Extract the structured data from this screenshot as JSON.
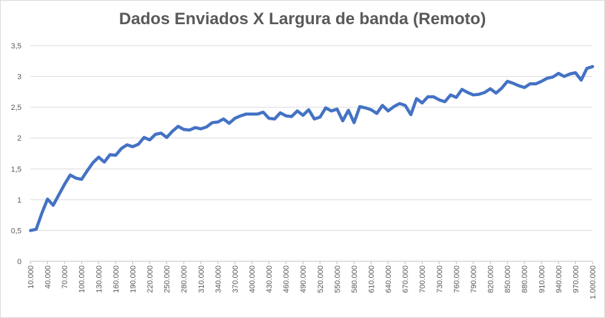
{
  "chart_data": {
    "type": "line",
    "title": "Dados Enviados X Largura de banda (Remoto)",
    "xlabel": "",
    "ylabel": "",
    "ylim": [
      0,
      3.5
    ],
    "y_ticks": [
      "0",
      "0,5",
      "1",
      "1,5",
      "2",
      "2,5",
      "3",
      "3,5"
    ],
    "grid": true,
    "legend": "none",
    "line_color": "#4472c4",
    "x_tick_labels": [
      "10.000",
      "40.000",
      "70.000",
      "100.000",
      "130.000",
      "160.000",
      "190.000",
      "220.000",
      "250.000",
      "280.000",
      "310.000",
      "340.000",
      "370.000",
      "400.000",
      "430.000",
      "460.000",
      "490.000",
      "520.000",
      "550.000",
      "580.000",
      "610.000",
      "640.000",
      "670.000",
      "700.000",
      "730.000",
      "760.000",
      "790.000",
      "820.000",
      "850.000",
      "880.000",
      "910.000",
      "940.000",
      "970.000",
      "1.000.000"
    ],
    "x": [
      10000,
      20000,
      30000,
      40000,
      50000,
      60000,
      70000,
      80000,
      90000,
      100000,
      110000,
      120000,
      130000,
      140000,
      150000,
      160000,
      170000,
      180000,
      190000,
      200000,
      210000,
      220000,
      230000,
      240000,
      250000,
      260000,
      270000,
      280000,
      290000,
      300000,
      310000,
      320000,
      330000,
      340000,
      350000,
      360000,
      370000,
      380000,
      390000,
      400000,
      410000,
      420000,
      430000,
      440000,
      450000,
      460000,
      470000,
      480000,
      490000,
      500000,
      510000,
      520000,
      530000,
      540000,
      550000,
      560000,
      570000,
      580000,
      590000,
      600000,
      610000,
      620000,
      630000,
      640000,
      650000,
      660000,
      670000,
      680000,
      690000,
      700000,
      710000,
      720000,
      730000,
      740000,
      750000,
      760000,
      770000,
      780000,
      790000,
      800000,
      810000,
      820000,
      830000,
      840000,
      850000,
      860000,
      870000,
      880000,
      890000,
      900000,
      910000,
      920000,
      930000,
      940000,
      950000,
      960000,
      970000,
      980000,
      990000,
      1000000
    ],
    "values": [
      0.5,
      0.52,
      0.78,
      1.01,
      0.91,
      1.08,
      1.25,
      1.4,
      1.35,
      1.33,
      1.47,
      1.6,
      1.69,
      1.61,
      1.73,
      1.72,
      1.83,
      1.89,
      1.86,
      1.9,
      2.01,
      1.97,
      2.06,
      2.08,
      2.01,
      2.11,
      2.19,
      2.14,
      2.13,
      2.17,
      2.15,
      2.18,
      2.25,
      2.26,
      2.31,
      2.24,
      2.32,
      2.36,
      2.39,
      2.39,
      2.39,
      2.42,
      2.32,
      2.31,
      2.41,
      2.36,
      2.35,
      2.44,
      2.37,
      2.46,
      2.31,
      2.34,
      2.49,
      2.44,
      2.47,
      2.28,
      2.45,
      2.25,
      2.51,
      2.49,
      2.46,
      2.4,
      2.53,
      2.44,
      2.51,
      2.56,
      2.53,
      2.38,
      2.64,
      2.57,
      2.67,
      2.67,
      2.62,
      2.59,
      2.7,
      2.66,
      2.79,
      2.74,
      2.7,
      2.71,
      2.74,
      2.8,
      2.73,
      2.81,
      2.92,
      2.89,
      2.85,
      2.82,
      2.88,
      2.88,
      2.92,
      2.97,
      2.99,
      3.05,
      3.0,
      3.04,
      3.06,
      2.94,
      3.13,
      3.16
    ]
  }
}
